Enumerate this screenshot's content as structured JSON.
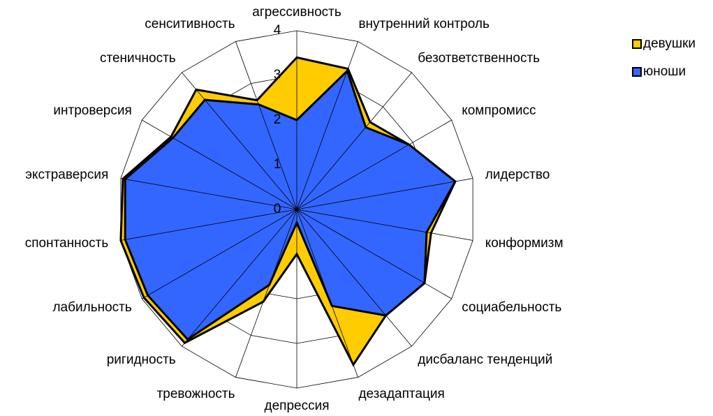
{
  "chart_data": {
    "type": "radar",
    "categories": [
      "агрессивность",
      "внутренний контроль",
      "безответственность",
      "компромисс",
      "лидерство",
      "конформизм",
      "социабельность",
      "дисбаланс тенденций",
      "дезадаптация",
      "депрессия",
      "тревожность",
      "ригидность",
      "лабильность",
      "спонтанность",
      "экстраверсия",
      "интроверсия",
      "стеничность",
      "сенситивность"
    ],
    "series": [
      {
        "name": "девушки",
        "color": "#ffcc00",
        "values": [
          3.4,
          3.35,
          2.55,
          2.9,
          3.6,
          3.05,
          3.3,
          3.1,
          3.7,
          1.0,
          2.2,
          3.9,
          3.95,
          4.0,
          3.95,
          3.25,
          3.5,
          2.6
        ]
      },
      {
        "name": "юноши",
        "color": "#3366ff",
        "values": [
          2.0,
          3.3,
          2.4,
          2.9,
          3.6,
          2.95,
          3.3,
          3.1,
          2.3,
          0.3,
          1.8,
          3.8,
          3.85,
          3.9,
          3.9,
          3.2,
          3.2,
          2.5
        ]
      }
    ],
    "ylim": [
      0,
      4
    ],
    "yticks": [
      0,
      1,
      2,
      3,
      4
    ],
    "grid": true,
    "legend": "top-right"
  }
}
